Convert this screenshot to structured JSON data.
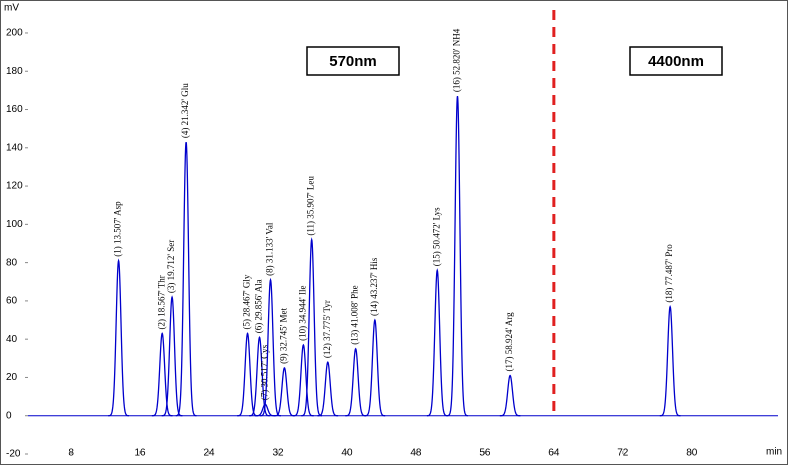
{
  "chart_data": {
    "type": "peaks",
    "y_label": "mV",
    "x_label": "min",
    "x": [
      13.507,
      18.567,
      19.712,
      21.342,
      28.467,
      29.856,
      30.517,
      31.133,
      32.745,
      34.944,
      35.907,
      37.775,
      41.008,
      43.237,
      50.472,
      52.82,
      58.924,
      77.487
    ],
    "values": [
      81,
      43,
      62,
      143,
      43,
      41,
      6,
      71,
      25,
      37,
      92,
      28,
      35,
      50,
      76,
      167,
      21,
      57
    ],
    "peak_labels": [
      "(1) 13.507' Asp",
      "(2) 18.567' Thr",
      "(3) 19.712' Ser",
      "(4) 21.342' Glu",
      "(5) 28.467' Gly",
      "(6) 29.856' Ala",
      "(7) 30.517' Cys",
      "(8) 31.133' Val",
      "(9) 32.745' Met",
      "(10) 34.944' Ile",
      "(11) 35.907' Leu",
      "(12) 37.775' Tyr",
      "(13) 41.008' Phe",
      "(14) 43.237' His",
      "(15) 50.472' Lys",
      "(16) 52.820' NH4",
      "(17) 58.924' Arg",
      "(18) 77.487' Pro"
    ],
    "color": "#0000cc",
    "xlim": [
      3,
      90
    ],
    "xticks": [
      8,
      16,
      24,
      32,
      40,
      48,
      56,
      64,
      72,
      80
    ],
    "ylim": [
      -20,
      212
    ],
    "yticks": [
      -20,
      0,
      20,
      40,
      60,
      80,
      100,
      120,
      140,
      160,
      180,
      200
    ],
    "divider": {
      "x": 64,
      "color": "#e02020"
    },
    "regions": [
      "570nm",
      "4400nm"
    ]
  }
}
